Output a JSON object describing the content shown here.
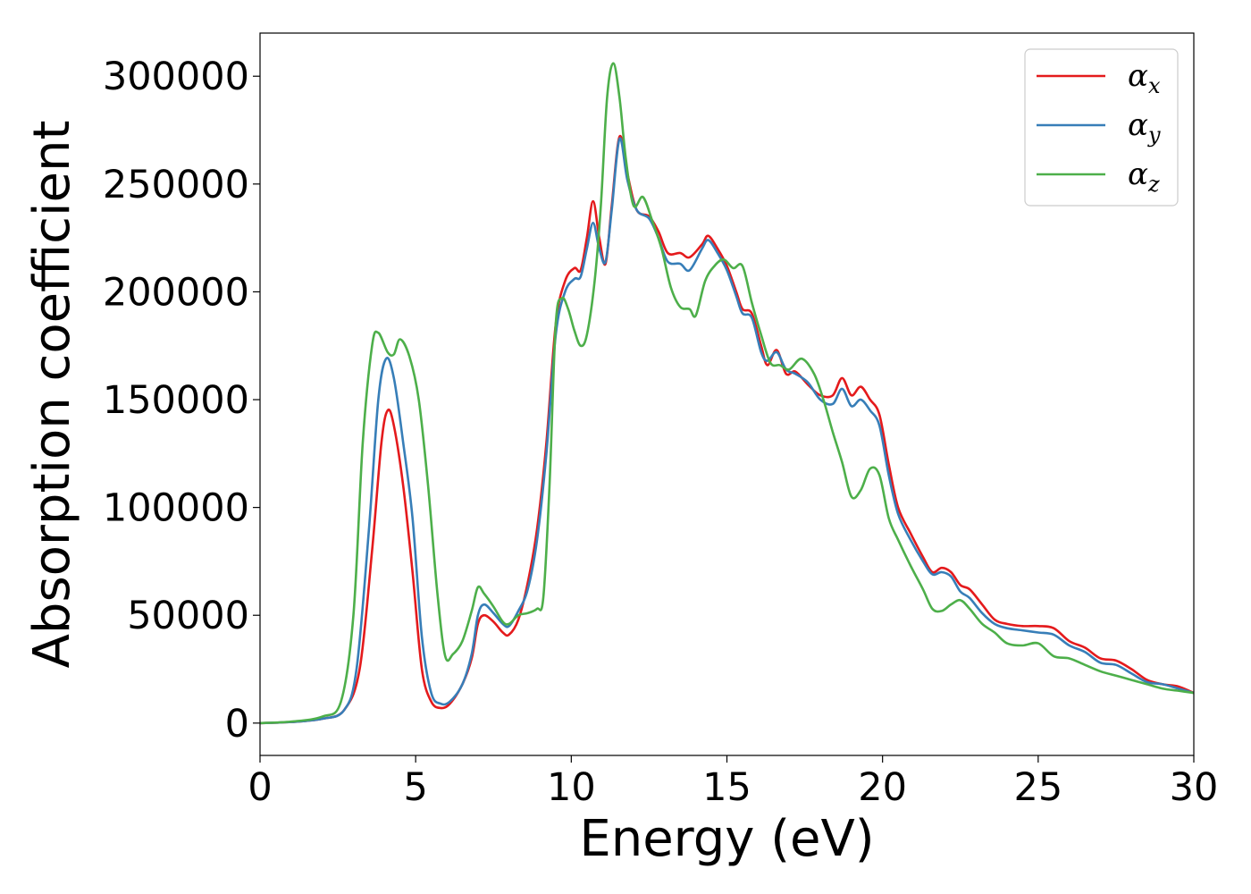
{
  "chart_data": {
    "type": "line",
    "title": "",
    "xlabel": "Energy (eV)",
    "ylabel": "Absorption coefficient",
    "xlim": [
      0,
      30
    ],
    "ylim": [
      -15000,
      320000
    ],
    "xticks": [
      0,
      5,
      10,
      15,
      20,
      25,
      30
    ],
    "yticks": [
      0,
      50000,
      100000,
      150000,
      200000,
      250000,
      300000
    ],
    "grid": false,
    "legend": "top-right",
    "series": [
      {
        "name": "α",
        "subscript": "x",
        "color": "#e41a1c",
        "points": [
          [
            0,
            0
          ],
          [
            1,
            500
          ],
          [
            2,
            2000
          ],
          [
            2.7,
            6000
          ],
          [
            3.2,
            25000
          ],
          [
            3.6,
            80000
          ],
          [
            3.9,
            130000
          ],
          [
            4.1,
            145000
          ],
          [
            4.3,
            138000
          ],
          [
            4.6,
            110000
          ],
          [
            4.9,
            70000
          ],
          [
            5.2,
            25000
          ],
          [
            5.5,
            10000
          ],
          [
            5.8,
            7000
          ],
          [
            6.1,
            9000
          ],
          [
            6.5,
            18000
          ],
          [
            6.8,
            30000
          ],
          [
            7.0,
            46000
          ],
          [
            7.2,
            50000
          ],
          [
            7.5,
            47000
          ],
          [
            7.8,
            42000
          ],
          [
            8.0,
            41000
          ],
          [
            8.3,
            48000
          ],
          [
            8.6,
            65000
          ],
          [
            8.9,
            90000
          ],
          [
            9.2,
            130000
          ],
          [
            9.5,
            185000
          ],
          [
            9.8,
            205000
          ],
          [
            10.1,
            211000
          ],
          [
            10.3,
            210000
          ],
          [
            10.5,
            225000
          ],
          [
            10.7,
            242000
          ],
          [
            10.9,
            225000
          ],
          [
            11.1,
            213000
          ],
          [
            11.3,
            240000
          ],
          [
            11.55,
            272000
          ],
          [
            11.8,
            255000
          ],
          [
            12.1,
            238000
          ],
          [
            12.5,
            235000
          ],
          [
            12.8,
            228000
          ],
          [
            13.1,
            218000
          ],
          [
            13.5,
            218000
          ],
          [
            13.8,
            216000
          ],
          [
            14.2,
            222000
          ],
          [
            14.4,
            226000
          ],
          [
            14.7,
            220000
          ],
          [
            15.0,
            212000
          ],
          [
            15.3,
            200000
          ],
          [
            15.5,
            192000
          ],
          [
            15.8,
            190000
          ],
          [
            16.1,
            175000
          ],
          [
            16.3,
            166000
          ],
          [
            16.6,
            173000
          ],
          [
            16.9,
            162000
          ],
          [
            17.2,
            163000
          ],
          [
            17.6,
            157000
          ],
          [
            18.0,
            152000
          ],
          [
            18.4,
            152000
          ],
          [
            18.7,
            160000
          ],
          [
            19.0,
            152000
          ],
          [
            19.3,
            156000
          ],
          [
            19.6,
            150000
          ],
          [
            19.9,
            143000
          ],
          [
            20.2,
            120000
          ],
          [
            20.5,
            100000
          ],
          [
            20.9,
            88000
          ],
          [
            21.3,
            77000
          ],
          [
            21.6,
            70000
          ],
          [
            21.9,
            72000
          ],
          [
            22.2,
            70000
          ],
          [
            22.5,
            64000
          ],
          [
            22.8,
            62000
          ],
          [
            23.2,
            55000
          ],
          [
            23.6,
            48000
          ],
          [
            24.0,
            46000
          ],
          [
            24.5,
            45000
          ],
          [
            25.0,
            45000
          ],
          [
            25.5,
            44000
          ],
          [
            26.0,
            38000
          ],
          [
            26.5,
            35000
          ],
          [
            27.0,
            30000
          ],
          [
            27.5,
            29000
          ],
          [
            28.0,
            25000
          ],
          [
            28.5,
            20000
          ],
          [
            29.0,
            18000
          ],
          [
            29.5,
            17000
          ],
          [
            30.0,
            14000
          ]
        ]
      },
      {
        "name": "α",
        "subscript": "y",
        "color": "#377eb8",
        "points": [
          [
            0,
            0
          ],
          [
            1,
            500
          ],
          [
            2,
            2000
          ],
          [
            2.7,
            6000
          ],
          [
            3.1,
            25000
          ],
          [
            3.5,
            90000
          ],
          [
            3.8,
            150000
          ],
          [
            4.05,
            169000
          ],
          [
            4.3,
            160000
          ],
          [
            4.6,
            130000
          ],
          [
            4.9,
            95000
          ],
          [
            5.2,
            40000
          ],
          [
            5.5,
            14000
          ],
          [
            5.8,
            9000
          ],
          [
            6.1,
            10000
          ],
          [
            6.5,
            18000
          ],
          [
            6.8,
            32000
          ],
          [
            7.0,
            50000
          ],
          [
            7.2,
            55000
          ],
          [
            7.5,
            51000
          ],
          [
            7.8,
            46000
          ],
          [
            8.0,
            45000
          ],
          [
            8.3,
            52000
          ],
          [
            8.6,
            62000
          ],
          [
            8.9,
            85000
          ],
          [
            9.2,
            125000
          ],
          [
            9.5,
            180000
          ],
          [
            9.8,
            200000
          ],
          [
            10.1,
            206000
          ],
          [
            10.3,
            207000
          ],
          [
            10.5,
            220000
          ],
          [
            10.7,
            232000
          ],
          [
            10.9,
            220000
          ],
          [
            11.1,
            214000
          ],
          [
            11.3,
            238000
          ],
          [
            11.55,
            271000
          ],
          [
            11.8,
            252000
          ],
          [
            12.1,
            238000
          ],
          [
            12.5,
            234000
          ],
          [
            12.8,
            225000
          ],
          [
            13.1,
            214000
          ],
          [
            13.5,
            213000
          ],
          [
            13.8,
            210000
          ],
          [
            14.2,
            220000
          ],
          [
            14.4,
            224000
          ],
          [
            14.7,
            218000
          ],
          [
            15.0,
            210000
          ],
          [
            15.3,
            198000
          ],
          [
            15.5,
            190000
          ],
          [
            15.8,
            188000
          ],
          [
            16.1,
            172000
          ],
          [
            16.3,
            168000
          ],
          [
            16.6,
            172000
          ],
          [
            16.9,
            164000
          ],
          [
            17.2,
            162000
          ],
          [
            17.6,
            158000
          ],
          [
            18.0,
            150000
          ],
          [
            18.4,
            148000
          ],
          [
            18.7,
            155000
          ],
          [
            19.0,
            147000
          ],
          [
            19.3,
            150000
          ],
          [
            19.6,
            145000
          ],
          [
            19.9,
            138000
          ],
          [
            20.2,
            115000
          ],
          [
            20.5,
            97000
          ],
          [
            20.9,
            85000
          ],
          [
            21.3,
            75000
          ],
          [
            21.6,
            69000
          ],
          [
            21.9,
            70000
          ],
          [
            22.2,
            68000
          ],
          [
            22.5,
            61000
          ],
          [
            22.8,
            58000
          ],
          [
            23.2,
            51000
          ],
          [
            23.6,
            46000
          ],
          [
            24.0,
            44000
          ],
          [
            24.5,
            43000
          ],
          [
            25.0,
            42000
          ],
          [
            25.5,
            41000
          ],
          [
            26.0,
            36000
          ],
          [
            26.5,
            33000
          ],
          [
            27.0,
            28000
          ],
          [
            27.5,
            27000
          ],
          [
            28.0,
            23000
          ],
          [
            28.5,
            19000
          ],
          [
            29.0,
            18000
          ],
          [
            29.5,
            16000
          ],
          [
            30.0,
            14000
          ]
        ]
      },
      {
        "name": "α",
        "subscript": "z",
        "color": "#4daf4a",
        "points": [
          [
            0,
            0
          ],
          [
            1,
            700
          ],
          [
            2,
            3000
          ],
          [
            2.6,
            10000
          ],
          [
            3.0,
            50000
          ],
          [
            3.3,
            130000
          ],
          [
            3.6,
            175000
          ],
          [
            3.8,
            181000
          ],
          [
            4.1,
            172000
          ],
          [
            4.3,
            171000
          ],
          [
            4.5,
            178000
          ],
          [
            4.8,
            170000
          ],
          [
            5.1,
            150000
          ],
          [
            5.4,
            110000
          ],
          [
            5.7,
            60000
          ],
          [
            5.95,
            31000
          ],
          [
            6.2,
            32000
          ],
          [
            6.5,
            38000
          ],
          [
            6.8,
            52000
          ],
          [
            7.0,
            63000
          ],
          [
            7.2,
            60000
          ],
          [
            7.5,
            54000
          ],
          [
            7.8,
            47000
          ],
          [
            8.0,
            46000
          ],
          [
            8.3,
            50000
          ],
          [
            8.6,
            51000
          ],
          [
            8.9,
            53000
          ],
          [
            9.1,
            58000
          ],
          [
            9.3,
            110000
          ],
          [
            9.5,
            185000
          ],
          [
            9.7,
            197000
          ],
          [
            9.9,
            192000
          ],
          [
            10.1,
            182000
          ],
          [
            10.3,
            175000
          ],
          [
            10.5,
            180000
          ],
          [
            10.75,
            205000
          ],
          [
            10.95,
            240000
          ],
          [
            11.15,
            290000
          ],
          [
            11.35,
            306000
          ],
          [
            11.55,
            290000
          ],
          [
            11.75,
            262000
          ],
          [
            12.0,
            240000
          ],
          [
            12.3,
            244000
          ],
          [
            12.6,
            233000
          ],
          [
            12.9,
            220000
          ],
          [
            13.2,
            202000
          ],
          [
            13.5,
            193000
          ],
          [
            13.8,
            192000
          ],
          [
            14.0,
            189000
          ],
          [
            14.3,
            205000
          ],
          [
            14.6,
            212000
          ],
          [
            14.9,
            215000
          ],
          [
            15.2,
            211000
          ],
          [
            15.5,
            212000
          ],
          [
            15.8,
            195000
          ],
          [
            16.1,
            180000
          ],
          [
            16.4,
            167000
          ],
          [
            16.7,
            166000
          ],
          [
            17.0,
            164000
          ],
          [
            17.4,
            169000
          ],
          [
            17.8,
            162000
          ],
          [
            18.1,
            150000
          ],
          [
            18.4,
            135000
          ],
          [
            18.7,
            121000
          ],
          [
            19.0,
            105000
          ],
          [
            19.3,
            108000
          ],
          [
            19.6,
            118000
          ],
          [
            19.9,
            115000
          ],
          [
            20.2,
            95000
          ],
          [
            20.5,
            85000
          ],
          [
            20.9,
            73000
          ],
          [
            21.3,
            62000
          ],
          [
            21.6,
            53000
          ],
          [
            21.9,
            52000
          ],
          [
            22.2,
            55000
          ],
          [
            22.5,
            57000
          ],
          [
            22.8,
            53000
          ],
          [
            23.2,
            46000
          ],
          [
            23.6,
            42000
          ],
          [
            24.0,
            37000
          ],
          [
            24.5,
            36000
          ],
          [
            25.0,
            37000
          ],
          [
            25.5,
            31000
          ],
          [
            26.0,
            30000
          ],
          [
            26.5,
            27000
          ],
          [
            27.0,
            24000
          ],
          [
            27.5,
            22000
          ],
          [
            28.0,
            20000
          ],
          [
            28.5,
            18000
          ],
          [
            29.0,
            16000
          ],
          [
            29.5,
            15000
          ],
          [
            30.0,
            14000
          ]
        ]
      }
    ]
  }
}
